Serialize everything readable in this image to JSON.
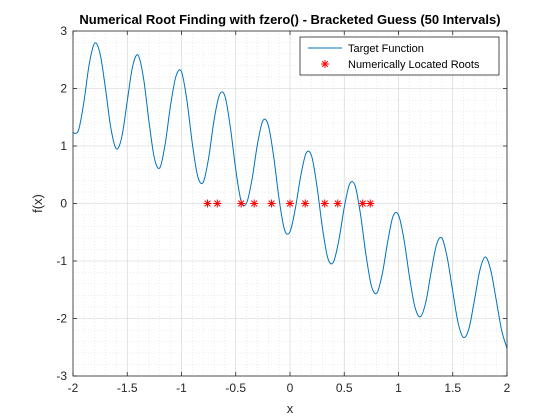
{
  "chart_data": {
    "type": "line",
    "title": "Numerical Root Finding with fzero() - Bracketed Guess (50 Intervals)",
    "xlabel": "x",
    "ylabel": "f(x)",
    "xlim": [
      -2,
      2
    ],
    "ylim": [
      -3,
      3
    ],
    "xticks": [
      -2,
      -1.5,
      -1,
      -0.5,
      0,
      0.5,
      1,
      1.5,
      2
    ],
    "xtick_labels": [
      "-2",
      "-1.5",
      "-1",
      "-0.5",
      "0",
      "0.5",
      "1",
      "1.5",
      "2"
    ],
    "yticks": [
      -3,
      -2,
      -1,
      0,
      1,
      2,
      3
    ],
    "ytick_labels": [
      "-3",
      "-2",
      "-1",
      "0",
      "1",
      "2",
      "3"
    ],
    "grid": true,
    "minor_grid": true,
    "legend_position": "top-right",
    "series": [
      {
        "name": "Target Function",
        "kind": "line",
        "color": "#0072BD",
        "x": [
          -2.0,
          -1.95,
          -1.9,
          -1.85,
          -1.8,
          -1.75,
          -1.7,
          -1.65,
          -1.6,
          -1.55,
          -1.5,
          -1.45,
          -1.4,
          -1.35,
          -1.3,
          -1.25,
          -1.2,
          -1.15,
          -1.1,
          -1.05,
          -1.0,
          -0.95,
          -0.9,
          -0.85,
          -0.8,
          -0.75,
          -0.7,
          -0.65,
          -0.6,
          -0.55,
          -0.5,
          -0.45,
          -0.4,
          -0.35,
          -0.3,
          -0.25,
          -0.2,
          -0.15,
          -0.1,
          -0.05,
          0.0,
          0.05,
          0.1,
          0.15,
          0.2,
          0.25,
          0.3,
          0.35,
          0.4,
          0.45,
          0.5,
          0.55,
          0.6,
          0.65,
          0.7,
          0.75,
          0.8,
          0.85,
          0.9,
          0.95,
          1.0,
          1.05,
          1.1,
          1.15,
          1.2,
          1.25,
          1.3,
          1.35,
          1.4,
          1.45,
          1.5,
          1.55,
          1.6,
          1.65,
          1.7,
          1.75,
          1.8,
          1.85,
          1.9,
          1.95,
          2.0
        ],
        "y": [
          1.23,
          1.27,
          1.76,
          2.43,
          2.79,
          2.6,
          1.99,
          1.3,
          0.95,
          1.16,
          1.78,
          2.39,
          2.58,
          2.18,
          1.43,
          0.79,
          0.62,
          1.04,
          1.72,
          2.22,
          2.29,
          1.79,
          1.04,
          0.47,
          0.37,
          0.79,
          1.45,
          1.89,
          1.87,
          1.33,
          0.59,
          0.04,
          0.01,
          0.42,
          1.03,
          1.44,
          1.36,
          0.81,
          0.07,
          -0.46,
          -0.49,
          -0.08,
          0.49,
          0.88,
          0.82,
          0.28,
          -0.44,
          -0.96,
          -1.02,
          -0.64,
          -0.07,
          0.34,
          0.31,
          -0.19,
          -0.89,
          -1.43,
          -1.56,
          -1.23,
          -0.67,
          -0.22,
          -0.2,
          -0.62,
          -1.26,
          -1.79,
          -1.97,
          -1.73,
          -1.2,
          -0.72,
          -0.6,
          -0.95,
          -1.53,
          -2.08,
          -2.33,
          -2.17,
          -1.68,
          -1.16,
          -0.93,
          -1.16,
          -1.67,
          -2.2,
          -2.52
        ]
      },
      {
        "name": "Numerically Located Roots",
        "kind": "scatter",
        "color": "#FF0000",
        "x": [
          -0.76,
          -0.67,
          -0.45,
          -0.33,
          -0.17,
          0.0,
          0.14,
          0.32,
          0.44,
          0.67,
          0.74
        ],
        "y": [
          0,
          0,
          0,
          0,
          0,
          0,
          0,
          0,
          0,
          0,
          0
        ]
      }
    ]
  }
}
